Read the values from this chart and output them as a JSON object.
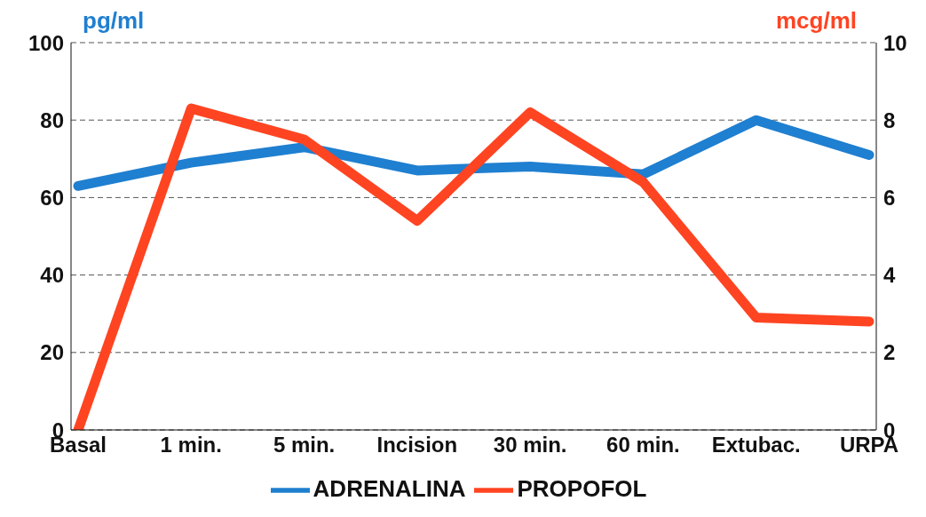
{
  "chart_data": {
    "type": "line",
    "ylabel": "pg/ml",
    "y2label": "mcg/ml",
    "categories": [
      "Basal",
      "1 min.",
      "5 min.",
      "Incision",
      "30 min.",
      "60 min.",
      "Extubac.",
      "URPA"
    ],
    "series": [
      {
        "name": "ADRENALINA",
        "color": "#1f7fd0",
        "values": [
          63,
          69,
          73,
          67,
          68,
          66,
          80,
          71
        ]
      },
      {
        "name": "PROPOFOL",
        "color": "#ff4422",
        "axis": "y2",
        "values": [
          0,
          8.3,
          7.5,
          5.4,
          8.2,
          6.4,
          2.9,
          2.8
        ]
      }
    ],
    "ylim": [
      0,
      100
    ],
    "yticks": [
      0,
      20,
      40,
      60,
      80,
      100
    ],
    "y2lim": [
      0,
      10
    ],
    "y2ticks": [
      0,
      2,
      4,
      6,
      8,
      10
    ],
    "grid": "y",
    "legend": "bottom",
    "marker": "none",
    "line_style": "solid"
  }
}
